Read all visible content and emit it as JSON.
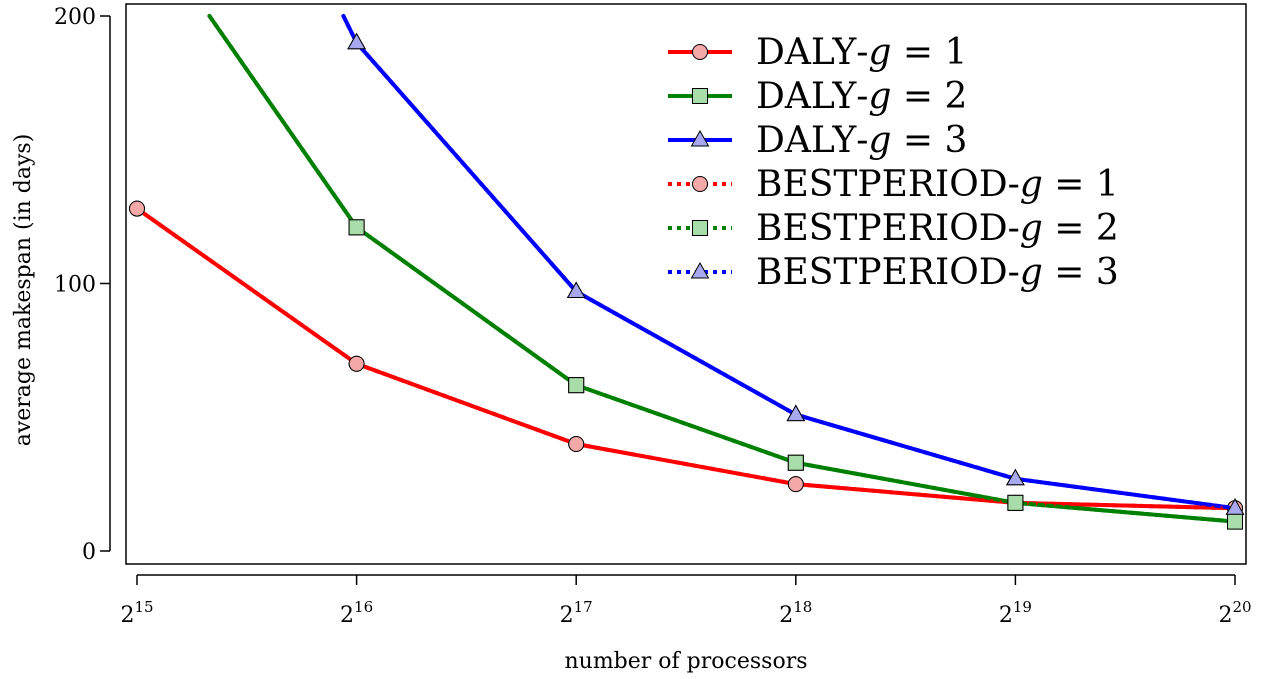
{
  "chart_data": {
    "type": "line",
    "title": "",
    "xlabel": "number of processors",
    "ylabel": "average makespan (in days)",
    "x_exponents": [
      15,
      16,
      17,
      18,
      19,
      20
    ],
    "x_tick_base": "2",
    "x_tick_exponents": [
      "15",
      "16",
      "17",
      "18",
      "19",
      "20"
    ],
    "y_ticks": [
      "0",
      "100",
      "200"
    ],
    "ylim": [
      0,
      200
    ],
    "xlim_exponent": [
      14.97,
      20.03
    ],
    "grid": false,
    "legend_position": "top-right",
    "series": [
      {
        "name": "DALY-g = 1",
        "name_parts": {
          "algo": "DALY",
          "g": "1"
        },
        "color": "#ff0000",
        "fill": "#f4a8a8",
        "marker": "circle",
        "line": "solid",
        "x": [
          15,
          16,
          17,
          18,
          19,
          20
        ],
        "values": [
          128,
          70,
          40,
          25,
          18,
          16
        ]
      },
      {
        "name": "DALY-g = 2",
        "name_parts": {
          "algo": "DALY",
          "g": "2"
        },
        "color": "#008000",
        "fill": "#a8dca8",
        "marker": "square",
        "line": "solid",
        "x": [
          15.33,
          16,
          17,
          18,
          19,
          20
        ],
        "values": [
          200,
          121,
          62,
          33,
          18,
          11
        ]
      },
      {
        "name": "DALY-g = 3",
        "name_parts": {
          "algo": "DALY",
          "g": "3"
        },
        "color": "#0000ff",
        "fill": "#a8a8f0",
        "marker": "triangle",
        "line": "solid",
        "x": [
          15.94,
          16,
          17,
          18,
          19,
          20
        ],
        "values": [
          200,
          190,
          97,
          51,
          27,
          16
        ]
      },
      {
        "name": "BESTPERIOD-g = 1",
        "name_parts": {
          "algo": "BESTPERIOD",
          "g": "1"
        },
        "color": "#ff0000",
        "fill": "#f4a8a8",
        "marker": "circle",
        "line": "dashed",
        "x": [
          15,
          16,
          17,
          18,
          19,
          20
        ],
        "values": [
          128,
          70,
          40,
          25,
          18,
          16
        ]
      },
      {
        "name": "BESTPERIOD-g = 2",
        "name_parts": {
          "algo": "BESTPERIOD",
          "g": "2"
        },
        "color": "#008000",
        "fill": "#a8dca8",
        "marker": "square",
        "line": "dashed",
        "x": [
          15.33,
          16,
          17,
          18,
          19,
          20
        ],
        "values": [
          200,
          121,
          62,
          33,
          18,
          11
        ]
      },
      {
        "name": "BESTPERIOD-g = 3",
        "name_parts": {
          "algo": "BESTPERIOD",
          "g": "3"
        },
        "color": "#0000ff",
        "fill": "#a8a8f0",
        "marker": "triangle",
        "line": "dashed",
        "x": [
          15.94,
          16,
          17,
          18,
          19,
          20
        ],
        "values": [
          200,
          190,
          97,
          51,
          27,
          16
        ]
      }
    ]
  }
}
